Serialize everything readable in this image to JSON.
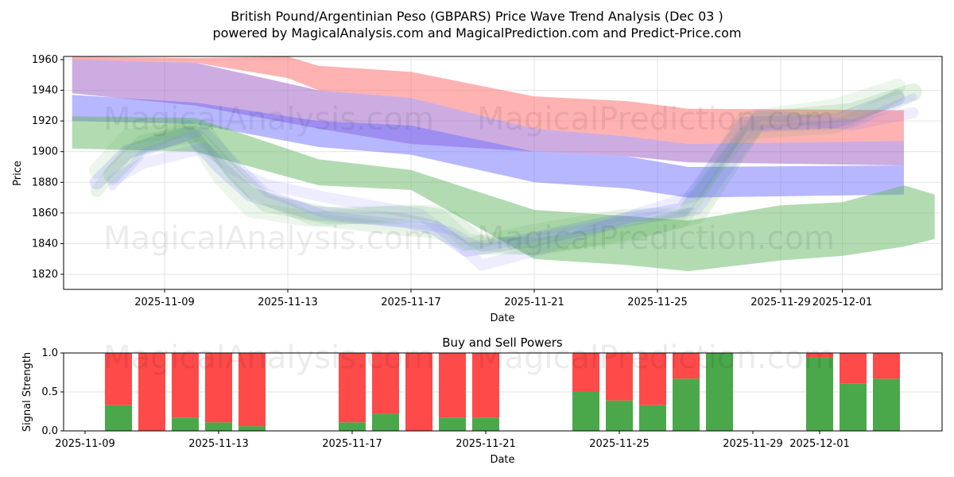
{
  "title_line1": "British Pound/Argentinian Peso (GBPARS) Price Wave Trend Analysis (Dec 03 )",
  "title_line2": "powered by MagicalAnalysis.com and MagicalPrediction.com and Predict-Price.com",
  "watermarks": [
    "MagicalAnalysis.com",
    "MagicalPrediction.com"
  ],
  "chart_data": [
    {
      "type": "area",
      "title": "",
      "xlabel": "Date",
      "ylabel": "Price",
      "xlim": [
        "2025-11-05",
        "2025-12-04"
      ],
      "ylim": [
        1810,
        1962
      ],
      "grid": true,
      "x_ticks": [
        "2025-11-09",
        "2025-11-13",
        "2025-11-17",
        "2025-11-21",
        "2025-11-25",
        "2025-11-29",
        "2025-12-01"
      ],
      "y_ticks": [
        1820,
        1840,
        1860,
        1880,
        1900,
        1920,
        1940,
        1960
      ],
      "bands": [
        {
          "name": "red",
          "color": "#ff6666",
          "x": [
            "2025-11-06",
            "2025-11-10",
            "2025-11-13",
            "2025-11-14",
            "2025-11-17",
            "2025-11-18",
            "2025-11-20",
            "2025-11-21",
            "2025-11-24",
            "2025-11-26",
            "2025-12-03"
          ],
          "upper": [
            1962,
            1961,
            1962,
            1956,
            1952,
            1948,
            1940,
            1936,
            1933,
            1928,
            1927
          ],
          "lower": [
            1960,
            1958,
            1948,
            1940,
            1935,
            1930,
            1920,
            1915,
            1910,
            1905,
            1907
          ]
        },
        {
          "name": "purple",
          "color": "#9b59c6",
          "x": [
            "2025-11-06",
            "2025-11-10",
            "2025-11-14",
            "2025-11-17",
            "2025-11-21",
            "2025-11-24",
            "2025-11-26",
            "2025-12-03"
          ],
          "upper": [
            1960,
            1958,
            1940,
            1935,
            1915,
            1910,
            1905,
            1907
          ],
          "lower": [
            1938,
            1930,
            1915,
            1905,
            1900,
            1897,
            1893,
            1891
          ]
        },
        {
          "name": "blue",
          "color": "#6f6fff",
          "x": [
            "2025-11-06",
            "2025-11-10",
            "2025-11-14",
            "2025-11-17",
            "2025-11-21",
            "2025-11-24",
            "2025-11-26",
            "2025-12-03"
          ],
          "upper": [
            1937,
            1932,
            1920,
            1917,
            1900,
            1897,
            1890,
            1891
          ],
          "lower": [
            1920,
            1918,
            1903,
            1898,
            1880,
            1876,
            1870,
            1872
          ]
        },
        {
          "name": "green",
          "color": "#66b866",
          "x": [
            "2025-11-06",
            "2025-11-10",
            "2025-11-14",
            "2025-11-17",
            "2025-11-21",
            "2025-11-24",
            "2025-11-26",
            "2025-11-29",
            "2025-12-01",
            "2025-12-03",
            "2025-12-04"
          ],
          "upper": [
            1923,
            1922,
            1895,
            1888,
            1862,
            1858,
            1855,
            1865,
            1867,
            1878,
            1872
          ],
          "lower": [
            1902,
            1900,
            1878,
            1875,
            1830,
            1826,
            1822,
            1829,
            1832,
            1838,
            1843
          ]
        }
      ],
      "price_waves": {
        "x": [
          "2025-11-07",
          "2025-11-08",
          "2025-11-10",
          "2025-11-11",
          "2025-11-12",
          "2025-11-14",
          "2025-11-17",
          "2025-11-18",
          "2025-11-19",
          "2025-11-21",
          "2025-11-24",
          "2025-11-26",
          "2025-11-28",
          "2025-12-01",
          "2025-12-03"
        ],
        "y": [
          1880,
          1900,
          1912,
          1890,
          1872,
          1860,
          1855,
          1850,
          1836,
          1842,
          1855,
          1862,
          1918,
          1920,
          1935
        ]
      }
    },
    {
      "type": "bar",
      "title": "Buy and Sell Powers",
      "xlabel": "Date",
      "ylabel": "Signal Strength",
      "ylim": [
        0,
        1
      ],
      "y_ticks": [
        "0.0",
        "0.5",
        "1.0"
      ],
      "x_ticks": [
        "2025-11-09",
        "2025-11-13",
        "2025-11-17",
        "2025-11-21",
        "2025-11-25",
        "2025-11-29",
        "2025-12-01"
      ],
      "categories": [
        "2025-11-10",
        "2025-11-11",
        "2025-11-12",
        "2025-11-13",
        "2025-11-14",
        "2025-11-17",
        "2025-11-18",
        "2025-11-19",
        "2025-11-20",
        "2025-11-21",
        "2025-11-24",
        "2025-11-25",
        "2025-11-26",
        "2025-11-27",
        "2025-11-28",
        "2025-12-01",
        "2025-12-02",
        "2025-12-03"
      ],
      "series": [
        {
          "name": "Buy",
          "color": "#4aa84a",
          "values": [
            0.33,
            0,
            0.17,
            0.11,
            0.06,
            0.11,
            0.22,
            0,
            0.17,
            0.17,
            0.5,
            0.39,
            0.33,
            0.67,
            1.0,
            0.94,
            0.61,
            0.67
          ]
        },
        {
          "name": "Sell",
          "color": "#ff4a4a",
          "values": [
            0.67,
            1,
            0.83,
            0.89,
            0.94,
            0.89,
            0.78,
            1,
            0.83,
            0.83,
            0.5,
            0.61,
            0.67,
            0.33,
            0,
            0.06,
            0.39,
            0.33
          ]
        }
      ]
    }
  ]
}
